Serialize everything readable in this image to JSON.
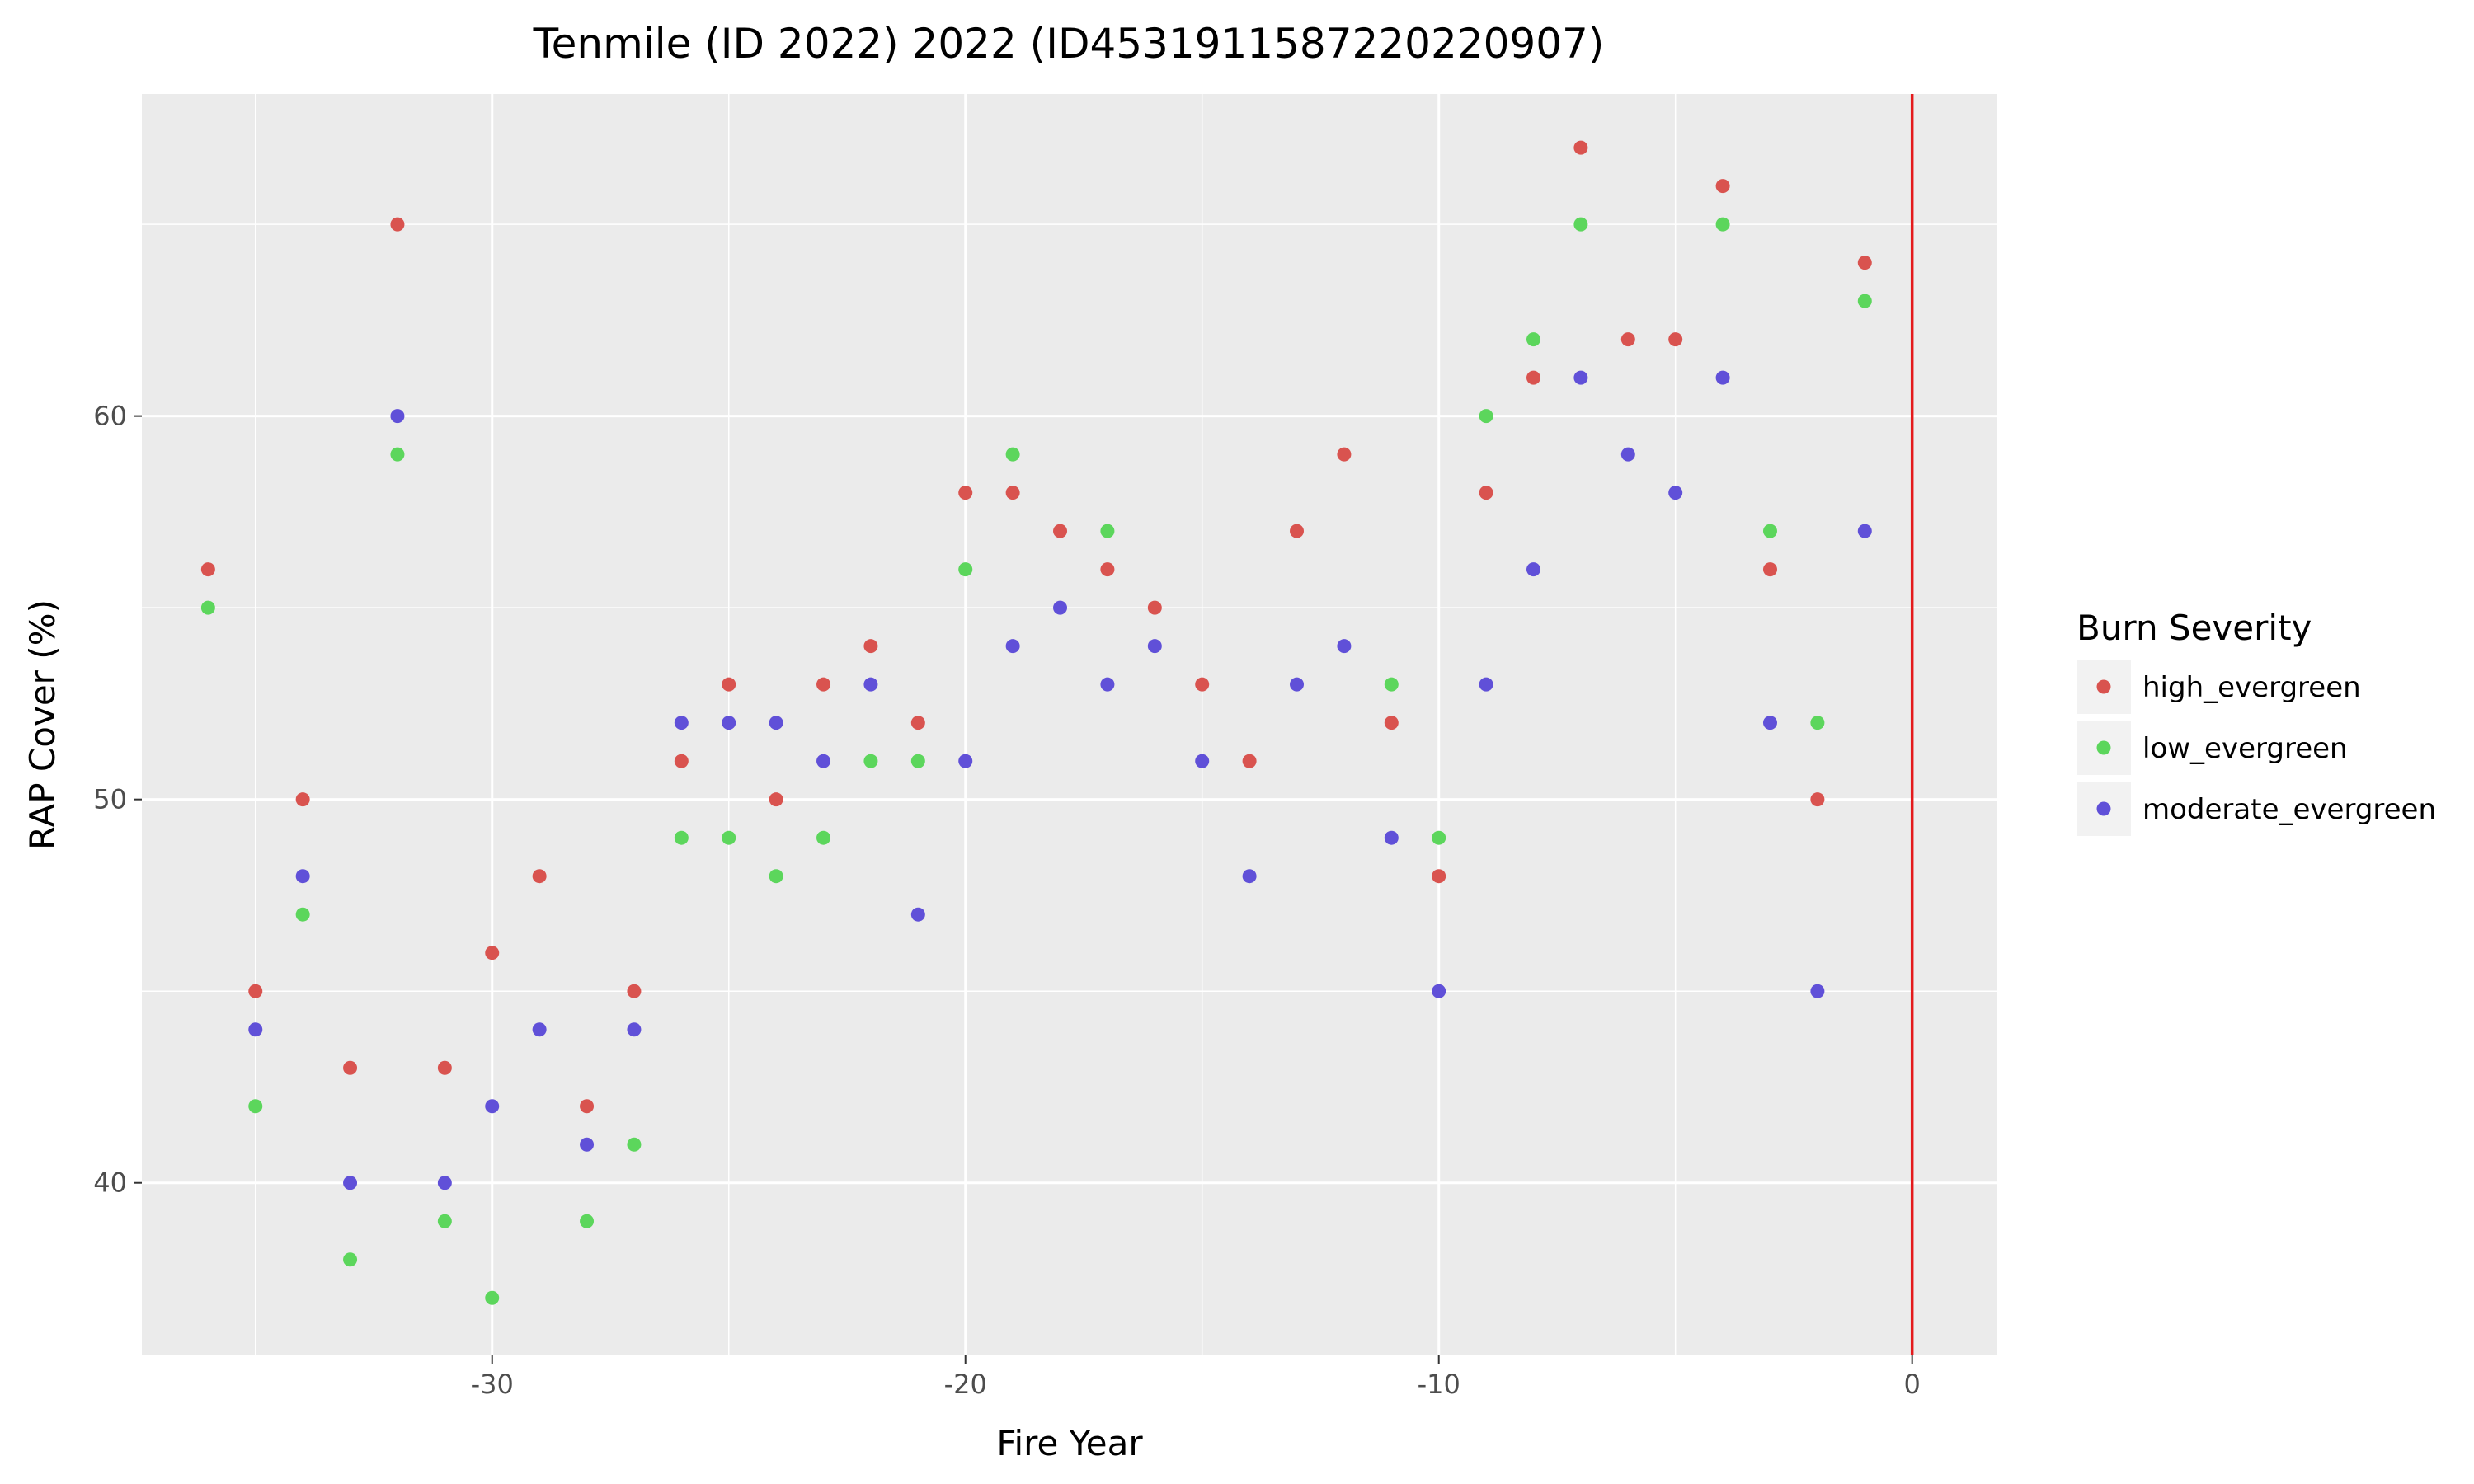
{
  "chart_data": {
    "type": "scatter",
    "title": "Tenmile (ID 2022) 2022 (ID4531911587220220907)",
    "xlabel": "Fire Year",
    "ylabel": "RAP Cover (%)",
    "xlim": [
      -37.4,
      1.8
    ],
    "ylim": [
      35.5,
      68.4
    ],
    "x_ticks": [
      -30,
      -20,
      -10,
      0
    ],
    "y_ticks": [
      40,
      50,
      60
    ],
    "grid": true,
    "reference_line": {
      "x": 0,
      "color": "#e41a1c"
    },
    "legend": {
      "title": "Burn Severity",
      "position": "right"
    },
    "series": [
      {
        "name": "high_evergreen",
        "color": "#d9534f",
        "points": [
          [
            -36,
            56
          ],
          [
            -35,
            45
          ],
          [
            -34,
            50
          ],
          [
            -33,
            43
          ],
          [
            -32,
            65
          ],
          [
            -31,
            43
          ],
          [
            -30,
            46
          ],
          [
            -29,
            48
          ],
          [
            -28,
            42
          ],
          [
            -27,
            45
          ],
          [
            -26,
            51
          ],
          [
            -25,
            53
          ],
          [
            -24,
            50
          ],
          [
            -23,
            53
          ],
          [
            -22,
            54
          ],
          [
            -21,
            52
          ],
          [
            -20,
            58
          ],
          [
            -19,
            58
          ],
          [
            -18,
            57
          ],
          [
            -17,
            56
          ],
          [
            -16,
            55
          ],
          [
            -15,
            53
          ],
          [
            -14,
            51
          ],
          [
            -13,
            57
          ],
          [
            -12,
            59
          ],
          [
            -11,
            52
          ],
          [
            -10,
            48
          ],
          [
            -9,
            58
          ],
          [
            -8,
            61
          ],
          [
            -7,
            67
          ],
          [
            -6,
            62
          ],
          [
            -5,
            62
          ],
          [
            -4,
            66
          ],
          [
            -3,
            56
          ],
          [
            -2,
            50
          ],
          [
            -1,
            64
          ]
        ]
      },
      {
        "name": "low_evergreen",
        "color": "#5cd65c",
        "points": [
          [
            -36,
            55
          ],
          [
            -35,
            42
          ],
          [
            -34,
            47
          ],
          [
            -33,
            38
          ],
          [
            -32,
            59
          ],
          [
            -31,
            39
          ],
          [
            -30,
            37
          ],
          [
            -28,
            39
          ],
          [
            -27,
            41
          ],
          [
            -26,
            49
          ],
          [
            -25,
            49
          ],
          [
            -24,
            48
          ],
          [
            -23,
            49
          ],
          [
            -22,
            51
          ],
          [
            -21,
            51
          ],
          [
            -20,
            56
          ],
          [
            -19,
            59
          ],
          [
            -17,
            57
          ],
          [
            -11,
            53
          ],
          [
            -10,
            49
          ],
          [
            -9,
            60
          ],
          [
            -8,
            62
          ],
          [
            -7,
            65
          ],
          [
            -4,
            65
          ],
          [
            -3,
            57
          ],
          [
            -2,
            52
          ],
          [
            -1,
            63
          ]
        ]
      },
      {
        "name": "moderate_evergreen",
        "color": "#6050d8",
        "points": [
          [
            -35,
            44
          ],
          [
            -34,
            48
          ],
          [
            -33,
            40
          ],
          [
            -32,
            60
          ],
          [
            -31,
            40
          ],
          [
            -30,
            42
          ],
          [
            -29,
            44
          ],
          [
            -28,
            41
          ],
          [
            -27,
            44
          ],
          [
            -26,
            52
          ],
          [
            -25,
            52
          ],
          [
            -24,
            52
          ],
          [
            -23,
            51
          ],
          [
            -22,
            53
          ],
          [
            -21,
            47
          ],
          [
            -20,
            51
          ],
          [
            -19,
            54
          ],
          [
            -18,
            55
          ],
          [
            -17,
            53
          ],
          [
            -16,
            54
          ],
          [
            -15,
            51
          ],
          [
            -14,
            48
          ],
          [
            -13,
            53
          ],
          [
            -12,
            54
          ],
          [
            -11,
            49
          ],
          [
            -10,
            45
          ],
          [
            -9,
            53
          ],
          [
            -8,
            56
          ],
          [
            -7,
            61
          ],
          [
            -6,
            59
          ],
          [
            -5,
            58
          ],
          [
            -4,
            61
          ],
          [
            -3,
            52
          ],
          [
            -2,
            45
          ],
          [
            -1,
            57
          ]
        ]
      }
    ]
  }
}
